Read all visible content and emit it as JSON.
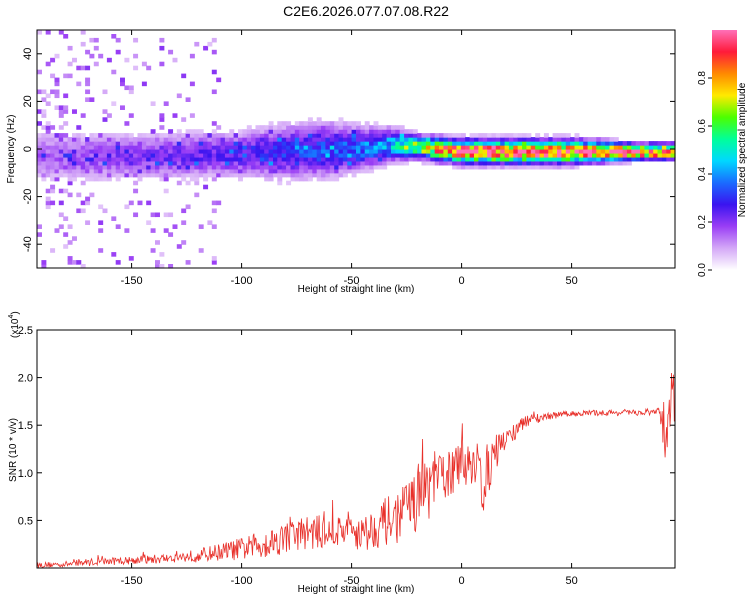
{
  "title": "C2E6.2026.077.07.08.R22",
  "chart_data": [
    {
      "type": "heatmap",
      "title": "C2E6.2026.077.07.08.R22",
      "xlabel": "Height of straight line (km)",
      "ylabel": "Frequency (Hz)",
      "xlim": [
        -193,
        97
      ],
      "ylim": [
        -50,
        50
      ],
      "xticks": [
        -150,
        -100,
        -50,
        0,
        50
      ],
      "xtick_labels": [
        "-150",
        "-100",
        "-50",
        "0",
        "50"
      ],
      "yticks": [
        -40,
        -20,
        0,
        20,
        40
      ],
      "ytick_labels": [
        "-40",
        "-20",
        "0",
        "20",
        "40"
      ],
      "colorbar": {
        "label": "Normalized spectral amplitude",
        "range": [
          0,
          1
        ],
        "ticks": [
          0.0,
          0.2,
          0.4,
          0.6,
          0.8
        ],
        "tick_labels": [
          "0.0",
          "0.2",
          "0.4",
          "0.6",
          "0.8"
        ],
        "colors": [
          "#ffffff",
          "#d4a8f7",
          "#9a3ef5",
          "#3a14f0",
          "#1a6cff",
          "#00d8ff",
          "#00ff9a",
          "#4cff00",
          "#ffea00",
          "#ff8a00",
          "#ff1a3a",
          "#ff70b8"
        ]
      },
      "ridge": {
        "height_km": [
          -193,
          -150,
          -100,
          -80,
          -60,
          -50,
          -40,
          -30,
          -20,
          -10,
          0,
          20,
          50,
          80,
          97
        ],
        "center_hz": [
          -3,
          -3,
          -2,
          -1,
          0,
          0,
          1,
          2,
          1,
          0,
          -1,
          -1,
          -1,
          -1,
          -1
        ],
        "halfwidth_hz": [
          7,
          6,
          6,
          7,
          7,
          6,
          5,
          4,
          3,
          3,
          3,
          3,
          3,
          2,
          2
        ],
        "peak_amplitude": [
          0.15,
          0.2,
          0.25,
          0.3,
          0.32,
          0.35,
          0.38,
          0.45,
          0.6,
          0.8,
          0.95,
          0.92,
          0.9,
          0.95,
          0.8
        ]
      }
    },
    {
      "type": "line",
      "xlabel": "Height of straight line (km)",
      "ylabel": "SNR (10 * v/v)",
      "y_multiplier_label": "(x10",
      "y_multiplier_exponent": "4",
      "xlim": [
        -193,
        97
      ],
      "ylim": [
        0,
        2.5
      ],
      "xticks": [
        -150,
        -100,
        -50,
        0,
        50
      ],
      "xtick_labels": [
        "-150",
        "-100",
        "-50",
        "0",
        "50"
      ],
      "yticks": [
        0.5,
        1.0,
        1.5,
        2.0,
        2.5
      ],
      "ytick_labels": [
        "0.5",
        "1.0",
        "1.5",
        "2.0",
        "2.5"
      ],
      "series": [
        {
          "name": "SNR",
          "color": "#e8302a",
          "x": [
            -193,
            -180,
            -170,
            -160,
            -150,
            -140,
            -130,
            -120,
            -110,
            -100,
            -90,
            -80,
            -70,
            -60,
            -50,
            -45,
            -40,
            -35,
            -30,
            -25,
            -20,
            -15,
            -10,
            -5,
            0,
            5,
            10,
            15,
            20,
            25,
            30,
            40,
            50,
            60,
            70,
            80,
            90,
            93,
            95,
            97
          ],
          "y": [
            0.03,
            0.04,
            0.06,
            0.07,
            0.08,
            0.09,
            0.11,
            0.13,
            0.17,
            0.2,
            0.25,
            0.32,
            0.38,
            0.37,
            0.42,
            0.35,
            0.42,
            0.48,
            0.52,
            0.62,
            0.75,
            0.85,
            0.95,
            1.0,
            1.08,
            1.12,
            0.9,
            1.2,
            1.35,
            1.45,
            1.55,
            1.6,
            1.62,
            1.63,
            1.63,
            1.63,
            1.64,
            1.4,
            1.9,
            1.65
          ],
          "noise_amplitude": [
            0.03,
            0.03,
            0.04,
            0.04,
            0.04,
            0.05,
            0.05,
            0.07,
            0.09,
            0.12,
            0.15,
            0.17,
            0.18,
            0.18,
            0.2,
            0.2,
            0.22,
            0.25,
            0.28,
            0.3,
            0.35,
            0.35,
            0.3,
            0.25,
            0.25,
            0.25,
            0.35,
            0.2,
            0.12,
            0.1,
            0.06,
            0.04,
            0.03,
            0.03,
            0.03,
            0.03,
            0.04,
            0.4,
            0.5,
            0.3
          ]
        }
      ]
    }
  ]
}
